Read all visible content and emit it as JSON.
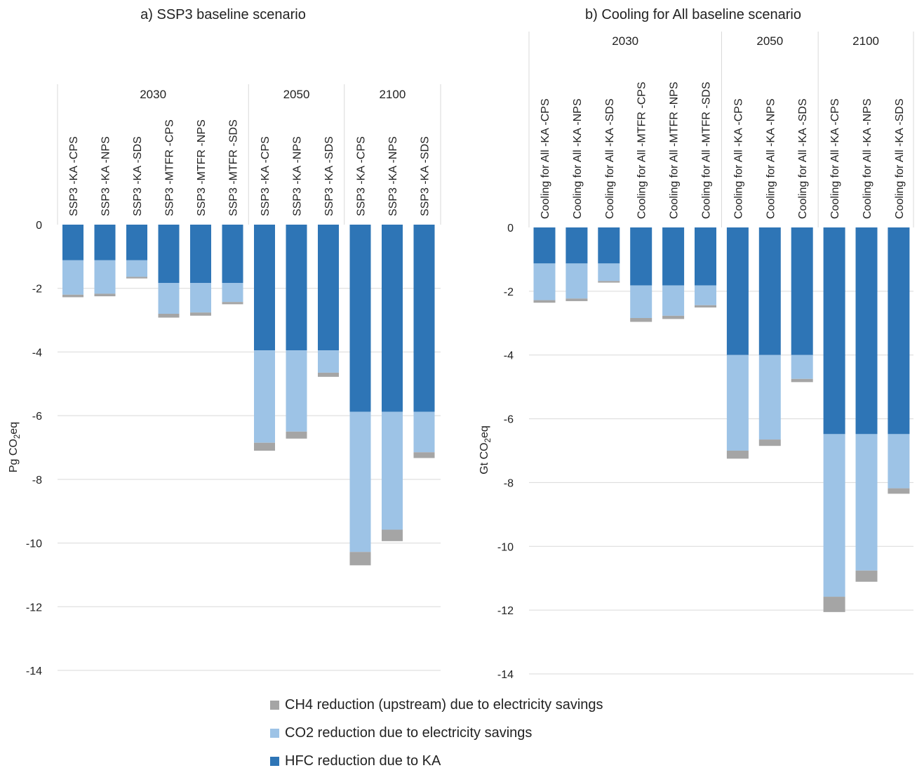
{
  "colors": {
    "hfc": "#2e75b6",
    "co2": "#9dc3e6",
    "ch4": "#a5a5a5",
    "grid": "#d9d9d9",
    "text": "#222222"
  },
  "legend": [
    {
      "label": "CH4 reduction (upstream) due to electricity savings",
      "color": "#a5a5a5"
    },
    {
      "label": "CO2 reduction due to electricity savings",
      "color": "#9dc3e6"
    },
    {
      "label": "HFC reduction due to KA",
      "color": "#2e75b6"
    }
  ],
  "chart_data": [
    {
      "type": "bar",
      "stacked": true,
      "title": "a) SSP3 baseline scenario",
      "ylabel": "Pg CO2eq",
      "ylim": [
        -14,
        0
      ],
      "yticks": [
        0,
        -2,
        -4,
        -6,
        -8,
        -10,
        -12,
        -14
      ],
      "grid": true,
      "groups": [
        {
          "label": "2030",
          "categories": [
            "SSP3 -KA -CPS",
            "SSP3 -KA -NPS",
            "SSP3 -KA -SDS",
            "SSP3 -MTFR -CPS",
            "SSP3 -MTFR -NPS",
            "SSP3 -MTFR -SDS"
          ]
        },
        {
          "label": "2050",
          "categories": [
            "SSP3 -KA -CPS",
            "SSP3 -KA -NPS",
            "SSP3 -KA -SDS"
          ]
        },
        {
          "label": "2100",
          "categories": [
            "SSP3 -KA -CPS",
            "SSP3 -KA -NPS",
            "SSP3 -KA -SDS"
          ]
        }
      ],
      "series": [
        {
          "name": "HFC reduction due to KA",
          "values": [
            -1.12,
            -1.12,
            -1.12,
            -1.83,
            -1.83,
            -1.83,
            -3.95,
            -3.95,
            -3.95,
            -5.88,
            -5.88,
            -5.88
          ]
        },
        {
          "name": "CO2 reduction due to electricity savings",
          "values": [
            -1.08,
            -1.05,
            -0.52,
            -0.97,
            -0.93,
            -0.6,
            -2.9,
            -2.55,
            -0.7,
            -4.4,
            -3.7,
            -1.27
          ]
        },
        {
          "name": "CH4 reduction (upstream) due to electricity savings",
          "values": [
            -0.08,
            -0.08,
            -0.05,
            -0.12,
            -0.1,
            -0.07,
            -0.25,
            -0.22,
            -0.13,
            -0.42,
            -0.36,
            -0.18
          ]
        }
      ]
    },
    {
      "type": "bar",
      "stacked": true,
      "title": "b) Cooling for All baseline scenario",
      "ylabel": "Gt CO2eq",
      "ylim": [
        -14,
        0
      ],
      "yticks": [
        0,
        -2,
        -4,
        -6,
        -8,
        -10,
        -12,
        -14
      ],
      "grid": true,
      "groups": [
        {
          "label": "2030",
          "categories": [
            "Cooling for All -KA -CPS",
            "Cooling for All -KA -NPS",
            "Cooling for All -KA -SDS",
            "Cooling for All -MTFR -CPS",
            "Cooling for All -MTFR -NPS",
            "Cooling for All -MTFR -SDS"
          ]
        },
        {
          "label": "2050",
          "categories": [
            "Cooling for All -KA -CPS",
            "Cooling for All -KA -NPS",
            "Cooling for All -KA -SDS"
          ]
        },
        {
          "label": "2100",
          "categories": [
            "Cooling for All -KA -CPS",
            "Cooling for All -KA -NPS",
            "Cooling for All -KA -SDS"
          ]
        }
      ],
      "series": [
        {
          "name": "HFC reduction due to KA",
          "values": [
            -1.13,
            -1.13,
            -1.13,
            -1.82,
            -1.82,
            -1.82,
            -4.0,
            -4.0,
            -4.0,
            -6.48,
            -6.48,
            -6.48
          ]
        },
        {
          "name": "CO2 reduction due to electricity savings",
          "values": [
            -1.15,
            -1.1,
            -0.55,
            -1.02,
            -0.95,
            -0.62,
            -3.0,
            -2.65,
            -0.75,
            -5.1,
            -4.28,
            -1.7
          ]
        },
        {
          "name": "CH4 reduction (upstream) due to electricity savings",
          "values": [
            -0.08,
            -0.08,
            -0.05,
            -0.12,
            -0.1,
            -0.07,
            -0.25,
            -0.2,
            -0.1,
            -0.48,
            -0.35,
            -0.17
          ]
        }
      ]
    }
  ]
}
